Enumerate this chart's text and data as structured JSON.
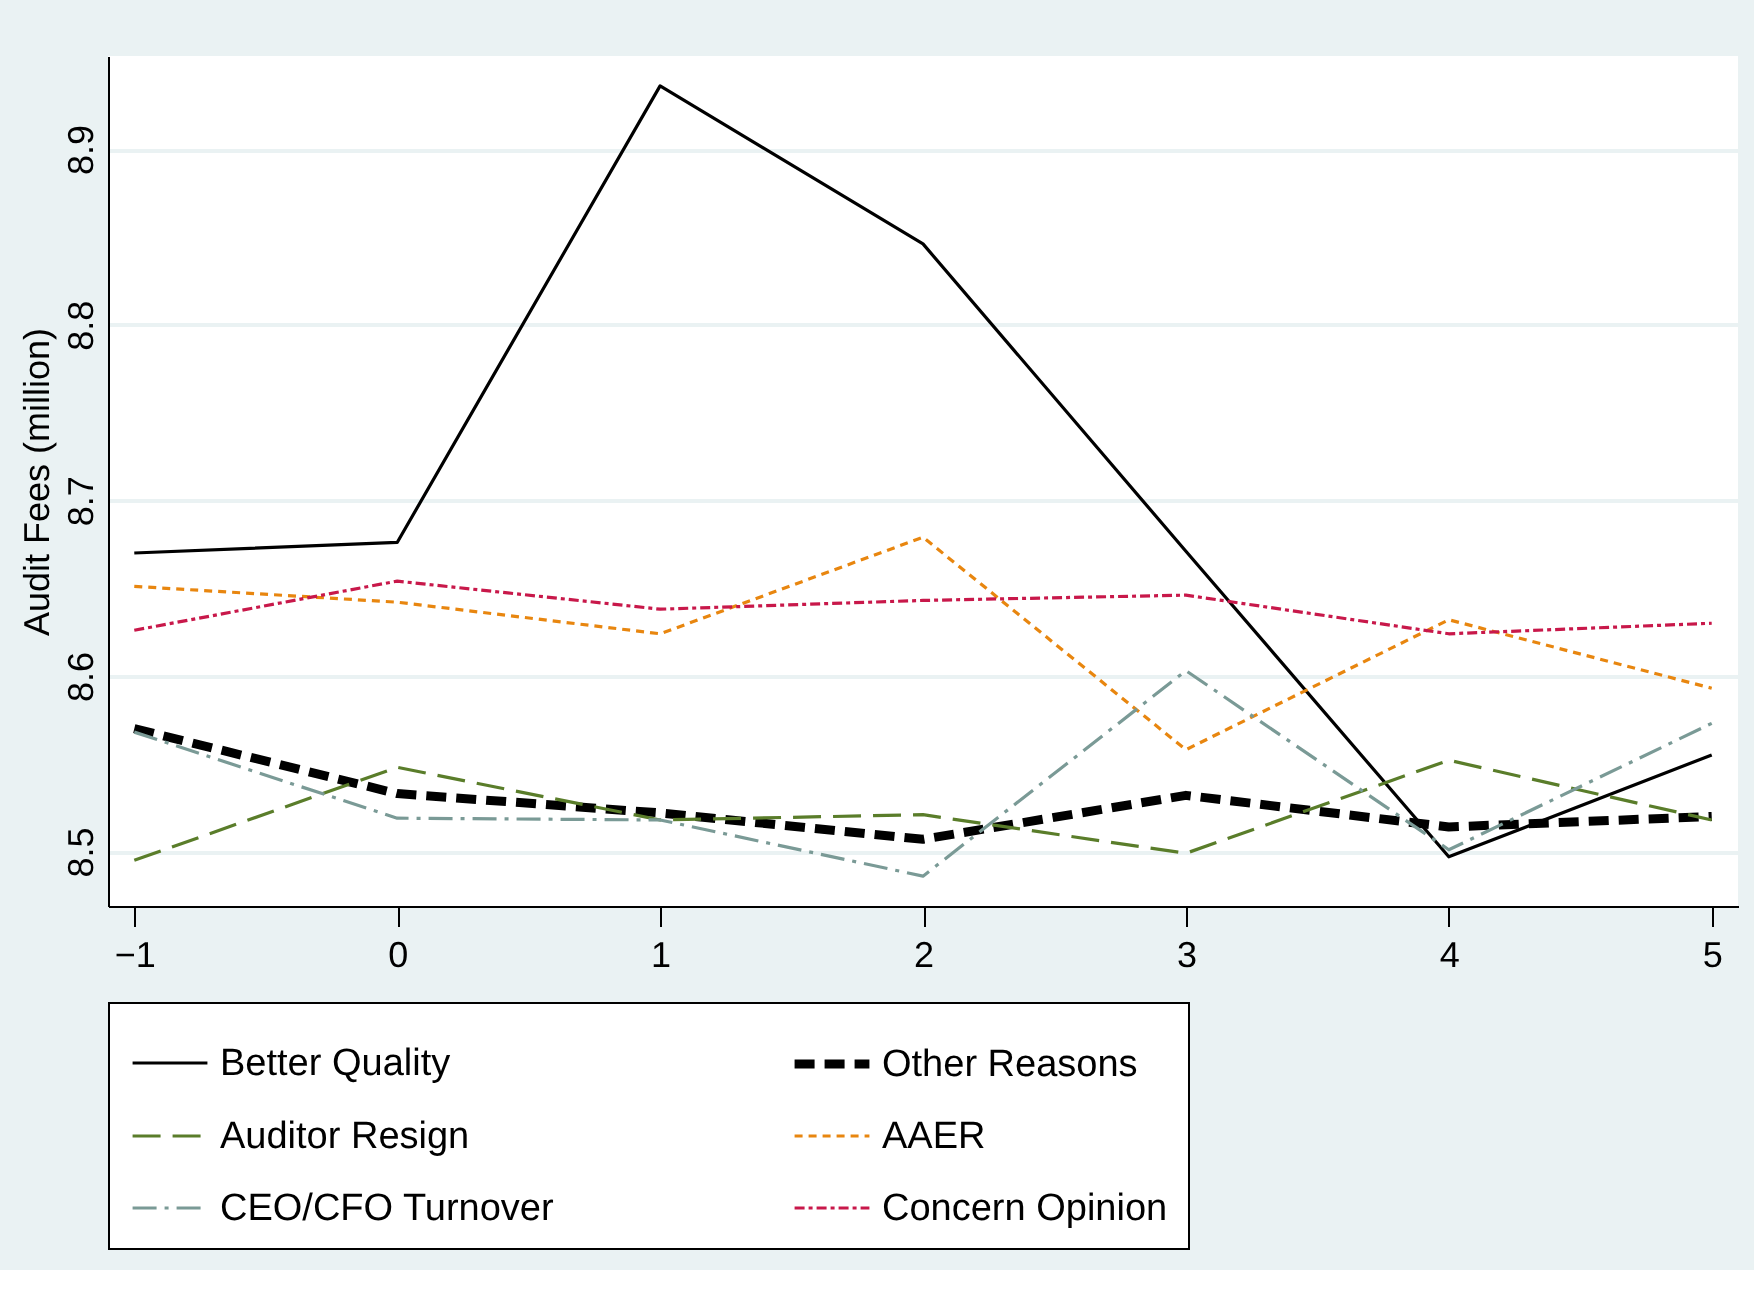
{
  "chart_data": {
    "type": "line",
    "ylabel": "Audit Fees (million)",
    "x": [
      -1,
      0,
      1,
      2,
      3,
      4,
      5
    ],
    "xlim": [
      -1.1,
      5.1
    ],
    "xticks": [
      -1,
      0,
      1,
      2,
      3,
      4,
      5
    ],
    "ylim": [
      8.469,
      8.953
    ],
    "yticks": [
      8.5,
      8.6,
      8.7,
      8.8,
      8.9
    ],
    "grid": "y",
    "legend": "bottom",
    "marker": "none",
    "series": [
      {
        "name": "Better Quality",
        "color": "#000000",
        "line_style": "solid",
        "values": [
          8.67,
          8.676,
          8.936,
          8.846,
          8.671,
          8.497,
          8.555
        ]
      },
      {
        "name": "Other Reasons",
        "color": "#000000",
        "line_style": "bold_dashed",
        "values": [
          8.57,
          8.533,
          8.522,
          8.507,
          8.532,
          8.514,
          8.52
        ]
      },
      {
        "name": "Auditor Resign",
        "color": "#5a7d2a",
        "line_style": "longdash",
        "values": [
          8.495,
          8.548,
          8.518,
          8.521,
          8.499,
          8.552,
          8.518
        ]
      },
      {
        "name": "AAER",
        "color": "#e8860f",
        "line_style": "dashed",
        "values": [
          8.651,
          8.642,
          8.624,
          8.679,
          8.558,
          8.632,
          8.593
        ]
      },
      {
        "name": "CEO/CFO Turnover",
        "color": "#7a9a96",
        "line_style": "longdashdot",
        "values": [
          8.568,
          8.519,
          8.518,
          8.486,
          8.603,
          8.501,
          8.573
        ]
      },
      {
        "name": "Concern Opinion",
        "color": "#c8184a",
        "line_style": "dashdot",
        "values": [
          8.626,
          8.654,
          8.638,
          8.643,
          8.646,
          8.624,
          8.63
        ]
      }
    ]
  }
}
